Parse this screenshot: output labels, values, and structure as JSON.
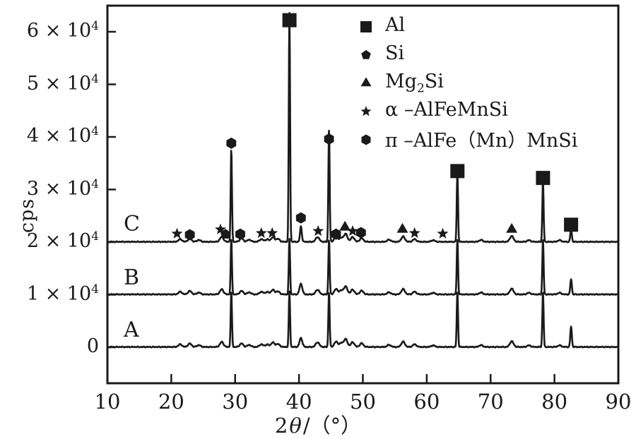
{
  "chart_data": {
    "type": "line",
    "title": "",
    "ylabel": "cps",
    "xlabel": {
      "num": "2",
      "theta": "θ",
      "rest": "/（°）"
    },
    "xlim": [
      10,
      90
    ],
    "ylim": [
      -7000,
      65000
    ],
    "grid": false,
    "legend_position": "upper right",
    "x_ticks": [
      10,
      20,
      30,
      40,
      50,
      60,
      70,
      80,
      90
    ],
    "y_ticks": [
      {
        "value": 60000,
        "base": "6 × 10",
        "exp": "4"
      },
      {
        "value": 50000,
        "base": "5 × 10",
        "exp": "4"
      },
      {
        "value": 40000,
        "base": "4 × 10",
        "exp": "4"
      },
      {
        "value": 30000,
        "base": "3 × 10",
        "exp": "4"
      },
      {
        "value": 20000,
        "base": "2 × 10",
        "exp": "4"
      },
      {
        "value": 10000,
        "base": "1 × 10",
        "exp": "4"
      },
      {
        "value": 0,
        "base": "0",
        "exp": ""
      }
    ],
    "common_bumps": [
      [
        21.4,
        500
      ],
      [
        22.9,
        650
      ],
      [
        24.3,
        350
      ],
      [
        27.9,
        950
      ],
      [
        31.0,
        650
      ],
      [
        32.2,
        400
      ],
      [
        34.1,
        500
      ],
      [
        35.0,
        450
      ],
      [
        35.9,
        850
      ],
      [
        36.7,
        550
      ],
      [
        42.9,
        900
      ],
      [
        45.8,
        1000
      ],
      [
        46.6,
        700
      ],
      [
        47.3,
        1500
      ],
      [
        48.4,
        900
      ],
      [
        49.8,
        700
      ],
      [
        54.1,
        400
      ],
      [
        56.3,
        1000
      ],
      [
        58.1,
        500
      ],
      [
        61.0,
        300
      ],
      [
        68.5,
        350
      ],
      [
        73.3,
        1100
      ],
      [
        76.0,
        300
      ],
      [
        80.8,
        300
      ]
    ],
    "series": [
      {
        "label": "A",
        "baseline": 0,
        "spikes": [
          [
            29.4,
            10500,
            0.1
          ],
          [
            38.5,
            10500,
            0.1
          ],
          [
            40.3,
            1700,
            0.22
          ],
          [
            44.7,
            10500,
            0.1
          ],
          [
            64.8,
            10500,
            0.1
          ],
          [
            78.2,
            10500,
            0.1
          ],
          [
            82.6,
            3900,
            0.12
          ]
        ]
      },
      {
        "label": "B",
        "baseline": 10000,
        "spikes": [
          [
            29.4,
            10500,
            0.1
          ],
          [
            38.5,
            10500,
            0.1
          ],
          [
            40.3,
            2000,
            0.22
          ],
          [
            44.7,
            10500,
            0.1
          ],
          [
            64.8,
            10500,
            0.1
          ],
          [
            78.2,
            10500,
            0.1
          ],
          [
            82.6,
            2900,
            0.12
          ]
        ]
      },
      {
        "label": "C",
        "baseline": 20000,
        "spikes": [
          [
            29.4,
            17600,
            0.1
          ],
          [
            38.5,
            43500,
            0.1
          ],
          [
            40.3,
            2900,
            0.14
          ],
          [
            44.7,
            21600,
            0.1
          ],
          [
            64.8,
            13200,
            0.1
          ],
          [
            78.2,
            11700,
            0.1
          ],
          [
            82.6,
            2400,
            0.12
          ]
        ]
      }
    ],
    "phase_markers": [
      {
        "theta": 20.9,
        "type": "star",
        "cps": 21600
      },
      {
        "theta": 22.9,
        "type": "hexagon",
        "cps": 21400
      },
      {
        "theta": 27.7,
        "type": "star",
        "cps": 22400
      },
      {
        "theta": 28.5,
        "type": "pentagon",
        "cps": 21500
      },
      {
        "theta": 29.4,
        "type": "hexagon",
        "cps": 38800
      },
      {
        "theta": 30.8,
        "type": "hexagon",
        "cps": 21500
      },
      {
        "theta": 34.1,
        "type": "star",
        "cps": 21700
      },
      {
        "theta": 35.8,
        "type": "star",
        "cps": 21700
      },
      {
        "theta": 38.5,
        "type": "square",
        "cps": 62200
      },
      {
        "theta": 40.3,
        "type": "hexagon",
        "cps": 24600
      },
      {
        "theta": 43.0,
        "type": "star",
        "cps": 22100
      },
      {
        "theta": 44.7,
        "type": "hexagon",
        "cps": 39600
      },
      {
        "theta": 45.8,
        "type": "hexagon",
        "cps": 21500
      },
      {
        "theta": 47.2,
        "type": "triangle",
        "cps": 22800
      },
      {
        "theta": 48.4,
        "type": "star",
        "cps": 22100
      },
      {
        "theta": 49.7,
        "type": "hexagon",
        "cps": 21800
      },
      {
        "theta": 56.2,
        "type": "triangle",
        "cps": 22400
      },
      {
        "theta": 58.1,
        "type": "star",
        "cps": 21700
      },
      {
        "theta": 62.5,
        "type": "star",
        "cps": 21600
      },
      {
        "theta": 64.8,
        "type": "square",
        "cps": 33500
      },
      {
        "theta": 73.3,
        "type": "triangle",
        "cps": 22400
      },
      {
        "theta": 78.2,
        "type": "square",
        "cps": 32200
      },
      {
        "theta": 82.6,
        "type": "square",
        "cps": 23300
      }
    ],
    "legend": [
      {
        "marker": "square",
        "pre": "Al",
        "sub": "",
        "post": ""
      },
      {
        "marker": "pentagon",
        "pre": "Si",
        "sub": "",
        "post": ""
      },
      {
        "marker": "triangle",
        "pre": "Mg",
        "sub": "2",
        "post": "Si"
      },
      {
        "marker": "star",
        "pre": "α –AlFeMnSi",
        "sub": "",
        "post": ""
      },
      {
        "marker": "hexagon",
        "pre": "π –AlFe（Mn）MnSi",
        "sub": "",
        "post": ""
      }
    ],
    "ink_color": "#1a1a1a"
  }
}
